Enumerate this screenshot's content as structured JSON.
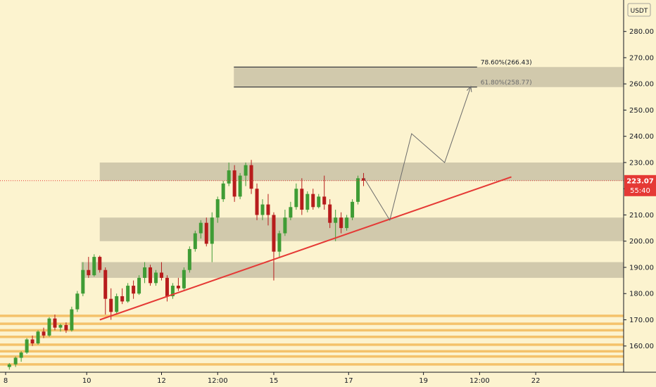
{
  "header": {
    "currency": "USDT"
  },
  "price_tag": {
    "price": "223.07",
    "countdown": "55:40"
  },
  "colors": {
    "background": "#fcf3cf",
    "up": "#3f9c35",
    "down": "#b71c1c",
    "zone": "#c9c1a6",
    "support": "#f4c26b",
    "trendline": "#e53935",
    "projection": "#6b6b6b",
    "price_tag": "#e53935"
  },
  "chart_data": {
    "type": "candlestick",
    "ylim": [
      150,
      292
    ],
    "x_range": [
      0,
      100
    ],
    "x_ticks": [
      {
        "x": 0,
        "label": "8"
      },
      {
        "x": 13,
        "label": "10"
      },
      {
        "x": 25,
        "label": "12"
      },
      {
        "x": 34,
        "label": "12:00"
      },
      {
        "x": 43,
        "label": "15"
      },
      {
        "x": 55,
        "label": "17"
      },
      {
        "x": 67,
        "label": "19"
      },
      {
        "x": 76,
        "label": "12:00"
      },
      {
        "x": 85,
        "label": "22"
      }
    ],
    "y_ticks": [
      160,
      170,
      180,
      190,
      200,
      210,
      220,
      230,
      240,
      250,
      260,
      270,
      280
    ],
    "current_price": 223.07,
    "zones": [
      {
        "x0": 37.5,
        "x1": 100,
        "y0": 258.77,
        "y1": 266.43
      },
      {
        "x0": 16,
        "x1": 100,
        "y0": 223,
        "y1": 230
      },
      {
        "x0": 16,
        "x1": 100,
        "y0": 200,
        "y1": 209
      },
      {
        "x0": 13,
        "x1": 100,
        "y0": 186,
        "y1": 192
      }
    ],
    "support_lines": [
      171.5,
      168.5,
      166,
      163.5,
      160.5,
      158,
      156,
      153
    ],
    "trendline": [
      [
        16,
        170
      ],
      [
        82,
        224.5
      ]
    ],
    "projection": [
      [
        58.4,
        224
      ],
      [
        62.5,
        208
      ],
      [
        66,
        241
      ],
      [
        71.3,
        230
      ],
      [
        75.5,
        259
      ]
    ],
    "fib_levels": [
      {
        "label": "78.60%(266.43)",
        "price": 266.43,
        "x0": 37.5,
        "x1": 76.5
      },
      {
        "label": "61.80%(258.77)",
        "price": 258.77,
        "x0": 37.5,
        "x1": 76.5
      }
    ],
    "candles": [
      [
        1.5,
        152.0,
        153.5,
        151.0,
        153.0
      ],
      [
        2.5,
        153.0,
        156.0,
        152.0,
        155.5
      ],
      [
        3.4,
        155.5,
        158.0,
        154.0,
        157.5
      ],
      [
        4.3,
        157.5,
        163.0,
        157.0,
        162.5
      ],
      [
        5.2,
        162.5,
        164.0,
        160.0,
        161.0
      ],
      [
        6.1,
        161.0,
        166.0,
        160.5,
        165.5
      ],
      [
        7.0,
        165.5,
        167.0,
        163.0,
        164.0
      ],
      [
        7.9,
        164.0,
        171.0,
        163.5,
        170.5
      ],
      [
        8.8,
        170.5,
        172.0,
        166.0,
        167.0
      ],
      [
        9.7,
        167.0,
        168.5,
        165.5,
        168.0
      ],
      [
        10.6,
        168.0,
        169.0,
        165.0,
        166.0
      ],
      [
        11.5,
        166.0,
        175.0,
        165.5,
        174.0
      ],
      [
        12.4,
        174.0,
        181.0,
        173.0,
        180.0
      ],
      [
        13.3,
        180.0,
        192.0,
        179.0,
        189.0
      ],
      [
        14.2,
        189.0,
        194.0,
        186.0,
        187.0
      ],
      [
        15.1,
        187.0,
        195.0,
        186.5,
        194.0
      ],
      [
        16.0,
        194.0,
        194.5,
        188.0,
        189.0
      ],
      [
        16.9,
        189.0,
        190.0,
        172.0,
        178.0
      ],
      [
        17.8,
        178.0,
        182.0,
        170.0,
        173.0
      ],
      [
        18.7,
        173.0,
        180.0,
        172.5,
        179.0
      ],
      [
        19.6,
        179.0,
        182.0,
        176.0,
        177.0
      ],
      [
        20.5,
        177.0,
        184.0,
        176.5,
        183.0
      ],
      [
        21.4,
        183.0,
        185.0,
        178.0,
        180.0
      ],
      [
        22.3,
        180.0,
        187.0,
        179.5,
        186.0
      ],
      [
        23.2,
        186.0,
        192.0,
        184.0,
        190.0
      ],
      [
        24.1,
        190.0,
        191.0,
        183.0,
        184.0
      ],
      [
        25.0,
        184.0,
        189.0,
        183.0,
        188.0
      ],
      [
        25.9,
        188.0,
        192.0,
        185.0,
        186.0
      ],
      [
        26.8,
        186.0,
        187.0,
        177.0,
        179.0
      ],
      [
        27.7,
        179.0,
        184.0,
        178.0,
        183.0
      ],
      [
        28.6,
        183.0,
        186.0,
        181.0,
        182.0
      ],
      [
        29.5,
        182.0,
        190.0,
        181.5,
        189.0
      ],
      [
        30.4,
        189.0,
        198.0,
        188.0,
        197.0
      ],
      [
        31.3,
        197.0,
        204.0,
        196.0,
        203.0
      ],
      [
        32.2,
        203.0,
        208.0,
        201.0,
        207.0
      ],
      [
        33.1,
        207.0,
        209.0,
        198.0,
        199.0
      ],
      [
        34.0,
        199.0,
        211.0,
        192.0,
        209.0
      ],
      [
        34.9,
        209.0,
        217.0,
        207.0,
        216.0
      ],
      [
        35.8,
        216.0,
        223.0,
        215.0,
        222.0
      ],
      [
        36.7,
        222.0,
        230.0,
        221.0,
        227.0
      ],
      [
        37.6,
        227.0,
        229.0,
        215.0,
        217.0
      ],
      [
        38.5,
        217.0,
        226.0,
        216.0,
        225.0
      ],
      [
        39.4,
        225.0,
        230.0,
        221.0,
        229.0
      ],
      [
        40.3,
        229.0,
        231.0,
        218.0,
        220.0
      ],
      [
        41.2,
        220.0,
        222.0,
        208.0,
        210.0
      ],
      [
        42.1,
        210.0,
        216.0,
        208.0,
        214.0
      ],
      [
        43.0,
        214.0,
        218.0,
        206.0,
        210.0
      ],
      [
        43.9,
        210.0,
        211.0,
        185.0,
        196.0
      ],
      [
        44.8,
        196.0,
        204.0,
        194.0,
        203.0
      ],
      [
        45.7,
        203.0,
        212.0,
        202.0,
        209.0
      ],
      [
        46.6,
        209.0,
        215.0,
        208.0,
        213.0
      ],
      [
        47.5,
        213.0,
        222.0,
        212.0,
        220.0
      ],
      [
        48.4,
        220.0,
        224.0,
        210.0,
        212.0
      ],
      [
        49.3,
        212.0,
        219.0,
        211.0,
        218.0
      ],
      [
        50.2,
        218.0,
        220.0,
        212.0,
        213.0
      ],
      [
        51.1,
        213.0,
        218.0,
        212.5,
        217.0
      ],
      [
        52.0,
        217.0,
        225.0,
        212.0,
        214.0
      ],
      [
        52.9,
        214.0,
        216.0,
        205.0,
        207.0
      ],
      [
        53.8,
        207.0,
        212.0,
        200.0,
        209.0
      ],
      [
        54.7,
        209.0,
        211.0,
        203.0,
        205.0
      ],
      [
        55.6,
        205.0,
        210.0,
        204.0,
        209.0
      ],
      [
        56.5,
        209.0,
        216.0,
        208.0,
        215.0
      ],
      [
        57.4,
        215.0,
        225.0,
        214.0,
        224.0
      ],
      [
        58.3,
        224.0,
        226.0,
        221.0,
        223.07
      ]
    ]
  }
}
